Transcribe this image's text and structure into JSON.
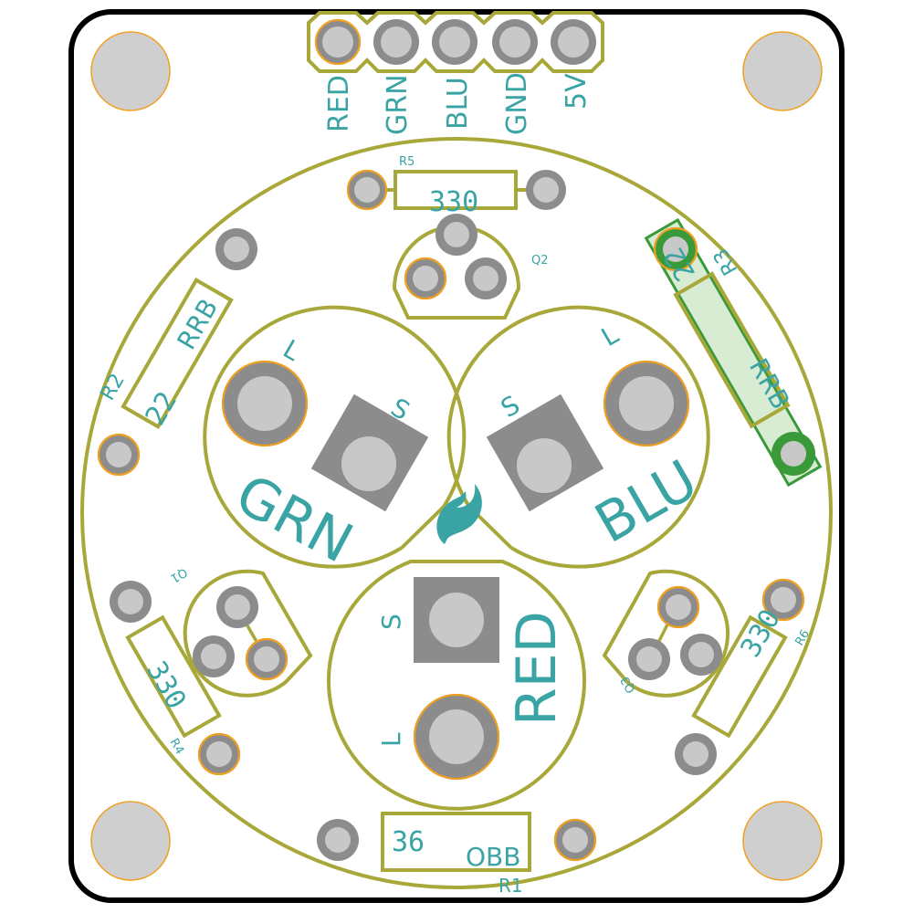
{
  "header_pins": [
    "RED",
    "GRN",
    "BLU",
    "GND",
    "5V"
  ],
  "leds": {
    "grn": {
      "name": "GRN",
      "long": "L",
      "short": "S"
    },
    "blu": {
      "name": "BLU",
      "long": "L",
      "short": "S"
    },
    "red": {
      "name": "RED",
      "long": "L",
      "short": "S"
    }
  },
  "resistors": {
    "r1": {
      "ref": "R1",
      "value": "36",
      "code": "OBB"
    },
    "r2": {
      "ref": "R2",
      "value": "22",
      "code": "RRB"
    },
    "r3": {
      "ref": "R3",
      "value": "22",
      "code": "RRB"
    },
    "r4": {
      "ref": "R4",
      "value": "330"
    },
    "r5": {
      "ref": "R5",
      "value": "330"
    },
    "r6": {
      "ref": "R6",
      "value": "330"
    }
  },
  "transistors": {
    "q1": "Q1",
    "q2": "Q2",
    "q3": "Q3"
  },
  "colors": {
    "silkscreen": "#a8a83a",
    "text": "#3aa4a4",
    "pad": "#8c8c8c",
    "drill": "#c8c8c8",
    "pad_ring": "#f0a020",
    "highlight": "#3a9a3a",
    "highlight_fill": "#d8ecd4"
  },
  "icons": [
    "flame-logo-icon"
  ]
}
